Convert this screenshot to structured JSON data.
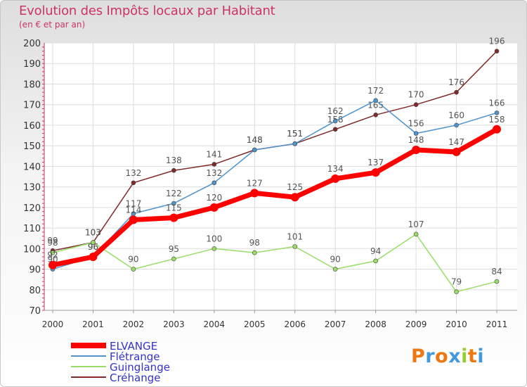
{
  "chart_data": {
    "type": "line",
    "title": "Evolution des Impôts locaux par Habitant",
    "subtitle": "(en € et par an)",
    "xlabel": "",
    "ylabel": "",
    "categories": [
      "2000",
      "2001",
      "2002",
      "2003",
      "2004",
      "2005",
      "2006",
      "2007",
      "2008",
      "2009",
      "2010",
      "2011"
    ],
    "ylim": [
      70,
      200
    ],
    "yticks": [
      70,
      80,
      90,
      100,
      110,
      120,
      130,
      140,
      150,
      160,
      170,
      180,
      190,
      200
    ],
    "grid": true,
    "legend_position": "bottom-left",
    "series": [
      {
        "name": "Créhange",
        "color": "#802a2a",
        "values": [
          99,
          103,
          132,
          138,
          141,
          148,
          151,
          158,
          165,
          170,
          176,
          196
        ]
      },
      {
        "name": "Flétrange",
        "color": "#4f94cd",
        "values": [
          90,
          96,
          117,
          122,
          132,
          148,
          151,
          162,
          172,
          156,
          160,
          166
        ]
      },
      {
        "name": "Guinglange",
        "color": "#99dd66",
        "values": [
          98,
          103,
          90,
          95,
          100,
          98,
          101,
          90,
          94,
          107,
          79,
          84
        ]
      },
      {
        "name": "ELVANGE",
        "color": "#ff0000",
        "values": [
          92,
          96,
          114,
          115,
          120,
          127,
          125,
          134,
          137,
          148,
          147,
          158
        ]
      }
    ]
  },
  "legend": [
    {
      "label": "ELVANGE",
      "color": "#ff0000"
    },
    {
      "label": "Flétrange",
      "color": "#4f94cd"
    },
    {
      "label": "Guinglange",
      "color": "#99dd66"
    },
    {
      "label": "Créhange",
      "color": "#802a2a"
    }
  ],
  "logo": {
    "text": "Proxiti",
    "colors": [
      "#ee7711",
      "#4499dd",
      "#ee7711",
      "#4499dd",
      "#99cc33",
      "#ee7711",
      "#4499dd"
    ]
  }
}
